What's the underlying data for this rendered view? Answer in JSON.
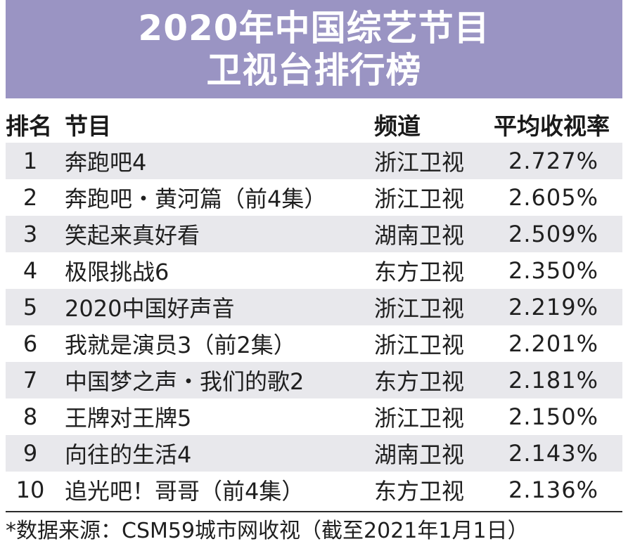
{
  "title": {
    "line1": "2020年中国综艺节目",
    "line2": "卫视台排行榜"
  },
  "colors": {
    "banner": "#9a94c3",
    "banner_text": "#ffffff",
    "row_stripe": "#e8e8ec"
  },
  "chart_data": {
    "type": "table",
    "columns": [
      "排名",
      "节目",
      "频道",
      "平均收视率"
    ],
    "rows": [
      {
        "rank": "1",
        "show": "奔跑吧4",
        "channel": "浙江卫视",
        "rating": "2.727%"
      },
      {
        "rank": "2",
        "show": "奔跑吧・黄河篇（前4集）",
        "channel": "浙江卫视",
        "rating": "2.605%"
      },
      {
        "rank": "3",
        "show": "笑起来真好看",
        "channel": "湖南卫视",
        "rating": "2.509%"
      },
      {
        "rank": "4",
        "show": "极限挑战6",
        "channel": "东方卫视",
        "rating": "2.350%"
      },
      {
        "rank": "5",
        "show": "2020中国好声音",
        "channel": "浙江卫视",
        "rating": "2.219%"
      },
      {
        "rank": "6",
        "show": "我就是演员3（前2集）",
        "channel": "浙江卫视",
        "rating": "2.201%"
      },
      {
        "rank": "7",
        "show": "中国梦之声・我们的歌2",
        "channel": "东方卫视",
        "rating": "2.181%"
      },
      {
        "rank": "8",
        "show": "王牌对王牌5",
        "channel": "浙江卫视",
        "rating": "2.150%"
      },
      {
        "rank": "9",
        "show": "向往的生活4",
        "channel": "湖南卫视",
        "rating": "2.143%"
      },
      {
        "rank": "10",
        "show": "追光吧！哥哥（前4集）",
        "channel": "东方卫视",
        "rating": "2.136%"
      }
    ]
  },
  "footer": {
    "source": "*数据来源：CSM59城市网收视（截至2021年1月1日）"
  }
}
